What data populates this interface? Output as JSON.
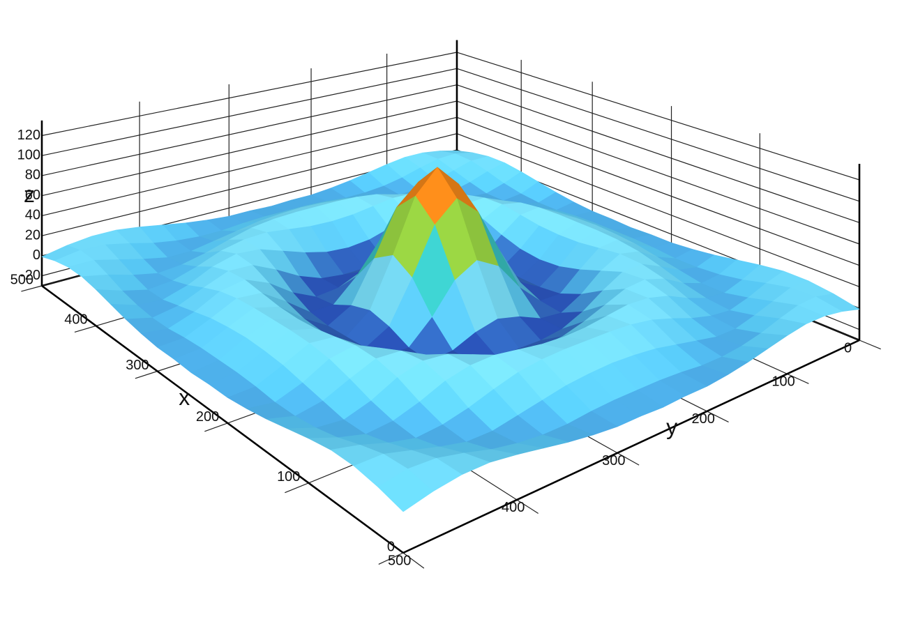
{
  "chart_data": {
    "type": "surface",
    "xlabel": "x",
    "ylabel": "y",
    "zlabel": "z",
    "x": [
      0,
      25,
      50,
      75,
      100,
      125,
      150,
      175,
      200,
      225,
      250,
      275,
      300,
      325,
      350,
      375,
      400,
      425,
      450,
      475,
      500
    ],
    "y": [
      0,
      25,
      50,
      75,
      100,
      125,
      150,
      175,
      200,
      225,
      250,
      275,
      300,
      325,
      350,
      375,
      400,
      425,
      450,
      475,
      500
    ],
    "z": [
      [
        -1,
        4,
        7,
        7,
        4,
        0,
        -4,
        -7,
        -9,
        -9,
        -10,
        -9,
        -9,
        -7,
        -4,
        0,
        4,
        7,
        7,
        4,
        -1
      ],
      [
        4,
        8,
        7,
        2,
        -4,
        -8,
        -10,
        -10,
        -8,
        -7,
        -7,
        -7,
        -8,
        -10,
        -10,
        -8,
        -4,
        2,
        7,
        8,
        4
      ],
      [
        7,
        7,
        1,
        -5,
        -10,
        -10,
        -6,
        -2,
        2,
        4,
        5,
        4,
        2,
        -2,
        -6,
        -10,
        -10,
        -5,
        1,
        7,
        7
      ],
      [
        7,
        2,
        -5,
        -10,
        -8,
        -3,
        4,
        10,
        13,
        14,
        14,
        14,
        13,
        10,
        4,
        -3,
        -8,
        -10,
        -5,
        2,
        7
      ],
      [
        4,
        -4,
        -10,
        -8,
        -1,
        8,
        13,
        14,
        11,
        8,
        7,
        8,
        11,
        14,
        13,
        8,
        -1,
        -8,
        -10,
        -4,
        4
      ],
      [
        0,
        -8,
        -10,
        -3,
        8,
        14,
        12,
        4,
        -4,
        -10,
        -12,
        -10,
        -4,
        4,
        12,
        14,
        8,
        -3,
        -10,
        -8,
        0
      ],
      [
        -4,
        -10,
        -6,
        4,
        13,
        12,
        1,
        -12,
        -21,
        -24,
        -24,
        -24,
        -21,
        -12,
        1,
        12,
        13,
        4,
        -6,
        -10,
        -4
      ],
      [
        -7,
        -10,
        -2,
        10,
        14,
        4,
        -12,
        -23,
        -21,
        -12,
        -7,
        -12,
        -21,
        -23,
        -12,
        4,
        14,
        10,
        -2,
        -10,
        -7
      ],
      [
        -9,
        -8,
        2,
        13,
        11,
        -4,
        -21,
        -21,
        -1,
        26,
        38,
        26,
        -1,
        -21,
        -21,
        -4,
        11,
        13,
        2,
        -8,
        -9
      ],
      [
        -9,
        -7,
        4,
        14,
        8,
        -10,
        -24,
        -12,
        26,
        69,
        88,
        69,
        26,
        -12,
        -24,
        -10,
        8,
        14,
        4,
        -7,
        -9
      ],
      [
        -10,
        -7,
        5,
        14,
        7,
        -12,
        -24,
        -7,
        38,
        88,
        110,
        88,
        38,
        -7,
        -24,
        -12,
        7,
        14,
        5,
        -7,
        -10
      ],
      [
        -9,
        -7,
        4,
        14,
        8,
        -10,
        -24,
        -12,
        26,
        69,
        88,
        69,
        26,
        -12,
        -24,
        -10,
        8,
        14,
        4,
        -7,
        -9
      ],
      [
        -9,
        -8,
        2,
        13,
        11,
        -4,
        -21,
        -21,
        -1,
        26,
        38,
        26,
        -1,
        -21,
        -21,
        -4,
        11,
        13,
        2,
        -8,
        -9
      ],
      [
        -7,
        -10,
        -2,
        10,
        14,
        4,
        -12,
        -23,
        -21,
        -12,
        -7,
        -12,
        -21,
        -23,
        -12,
        4,
        14,
        10,
        -2,
        -10,
        -7
      ],
      [
        -4,
        -10,
        -6,
        4,
        13,
        12,
        1,
        -12,
        -21,
        -24,
        -24,
        -24,
        -21,
        -12,
        1,
        12,
        13,
        4,
        -6,
        -10,
        -4
      ],
      [
        0,
        -8,
        -10,
        -3,
        8,
        14,
        12,
        4,
        -4,
        -10,
        -12,
        -10,
        -4,
        4,
        12,
        14,
        8,
        -3,
        -10,
        -8,
        0
      ],
      [
        4,
        -4,
        -10,
        -8,
        -1,
        8,
        13,
        14,
        11,
        8,
        7,
        8,
        11,
        14,
        13,
        8,
        -1,
        -8,
        -10,
        -4,
        4
      ],
      [
        7,
        2,
        -5,
        -10,
        -8,
        -3,
        4,
        10,
        13,
        14,
        14,
        14,
        13,
        10,
        4,
        -3,
        -8,
        -10,
        -5,
        2,
        7
      ],
      [
        7,
        7,
        1,
        -5,
        -10,
        -10,
        -6,
        -2,
        2,
        4,
        5,
        4,
        2,
        -2,
        -6,
        -10,
        -10,
        -5,
        1,
        7,
        7
      ],
      [
        4,
        8,
        7,
        2,
        -4,
        -8,
        -10,
        -10,
        -8,
        -7,
        -7,
        -7,
        -8,
        -10,
        -10,
        -8,
        -4,
        2,
        7,
        8,
        4
      ],
      [
        -1,
        4,
        7,
        7,
        4,
        0,
        -4,
        -7,
        -9,
        -9,
        -10,
        -9,
        -9,
        -7,
        -4,
        0,
        4,
        7,
        7,
        4,
        -1
      ]
    ],
    "xlim": [
      0,
      500
    ],
    "ylim": [
      0,
      500
    ],
    "zlim": [
      -30,
      135
    ],
    "xticks": [
      0,
      100,
      200,
      300,
      400,
      500
    ],
    "yticks": [
      0,
      100,
      200,
      300,
      400,
      500
    ],
    "zticks": [
      -20,
      0,
      20,
      40,
      60,
      80,
      100,
      120
    ],
    "grid": true,
    "colorscale": [
      "#1a2a9a",
      "#55c4f0",
      "#7ee0f6",
      "#30d0c8",
      "#8fd84a",
      "#f0e020",
      "#f07a18",
      "#c8000e"
    ]
  }
}
